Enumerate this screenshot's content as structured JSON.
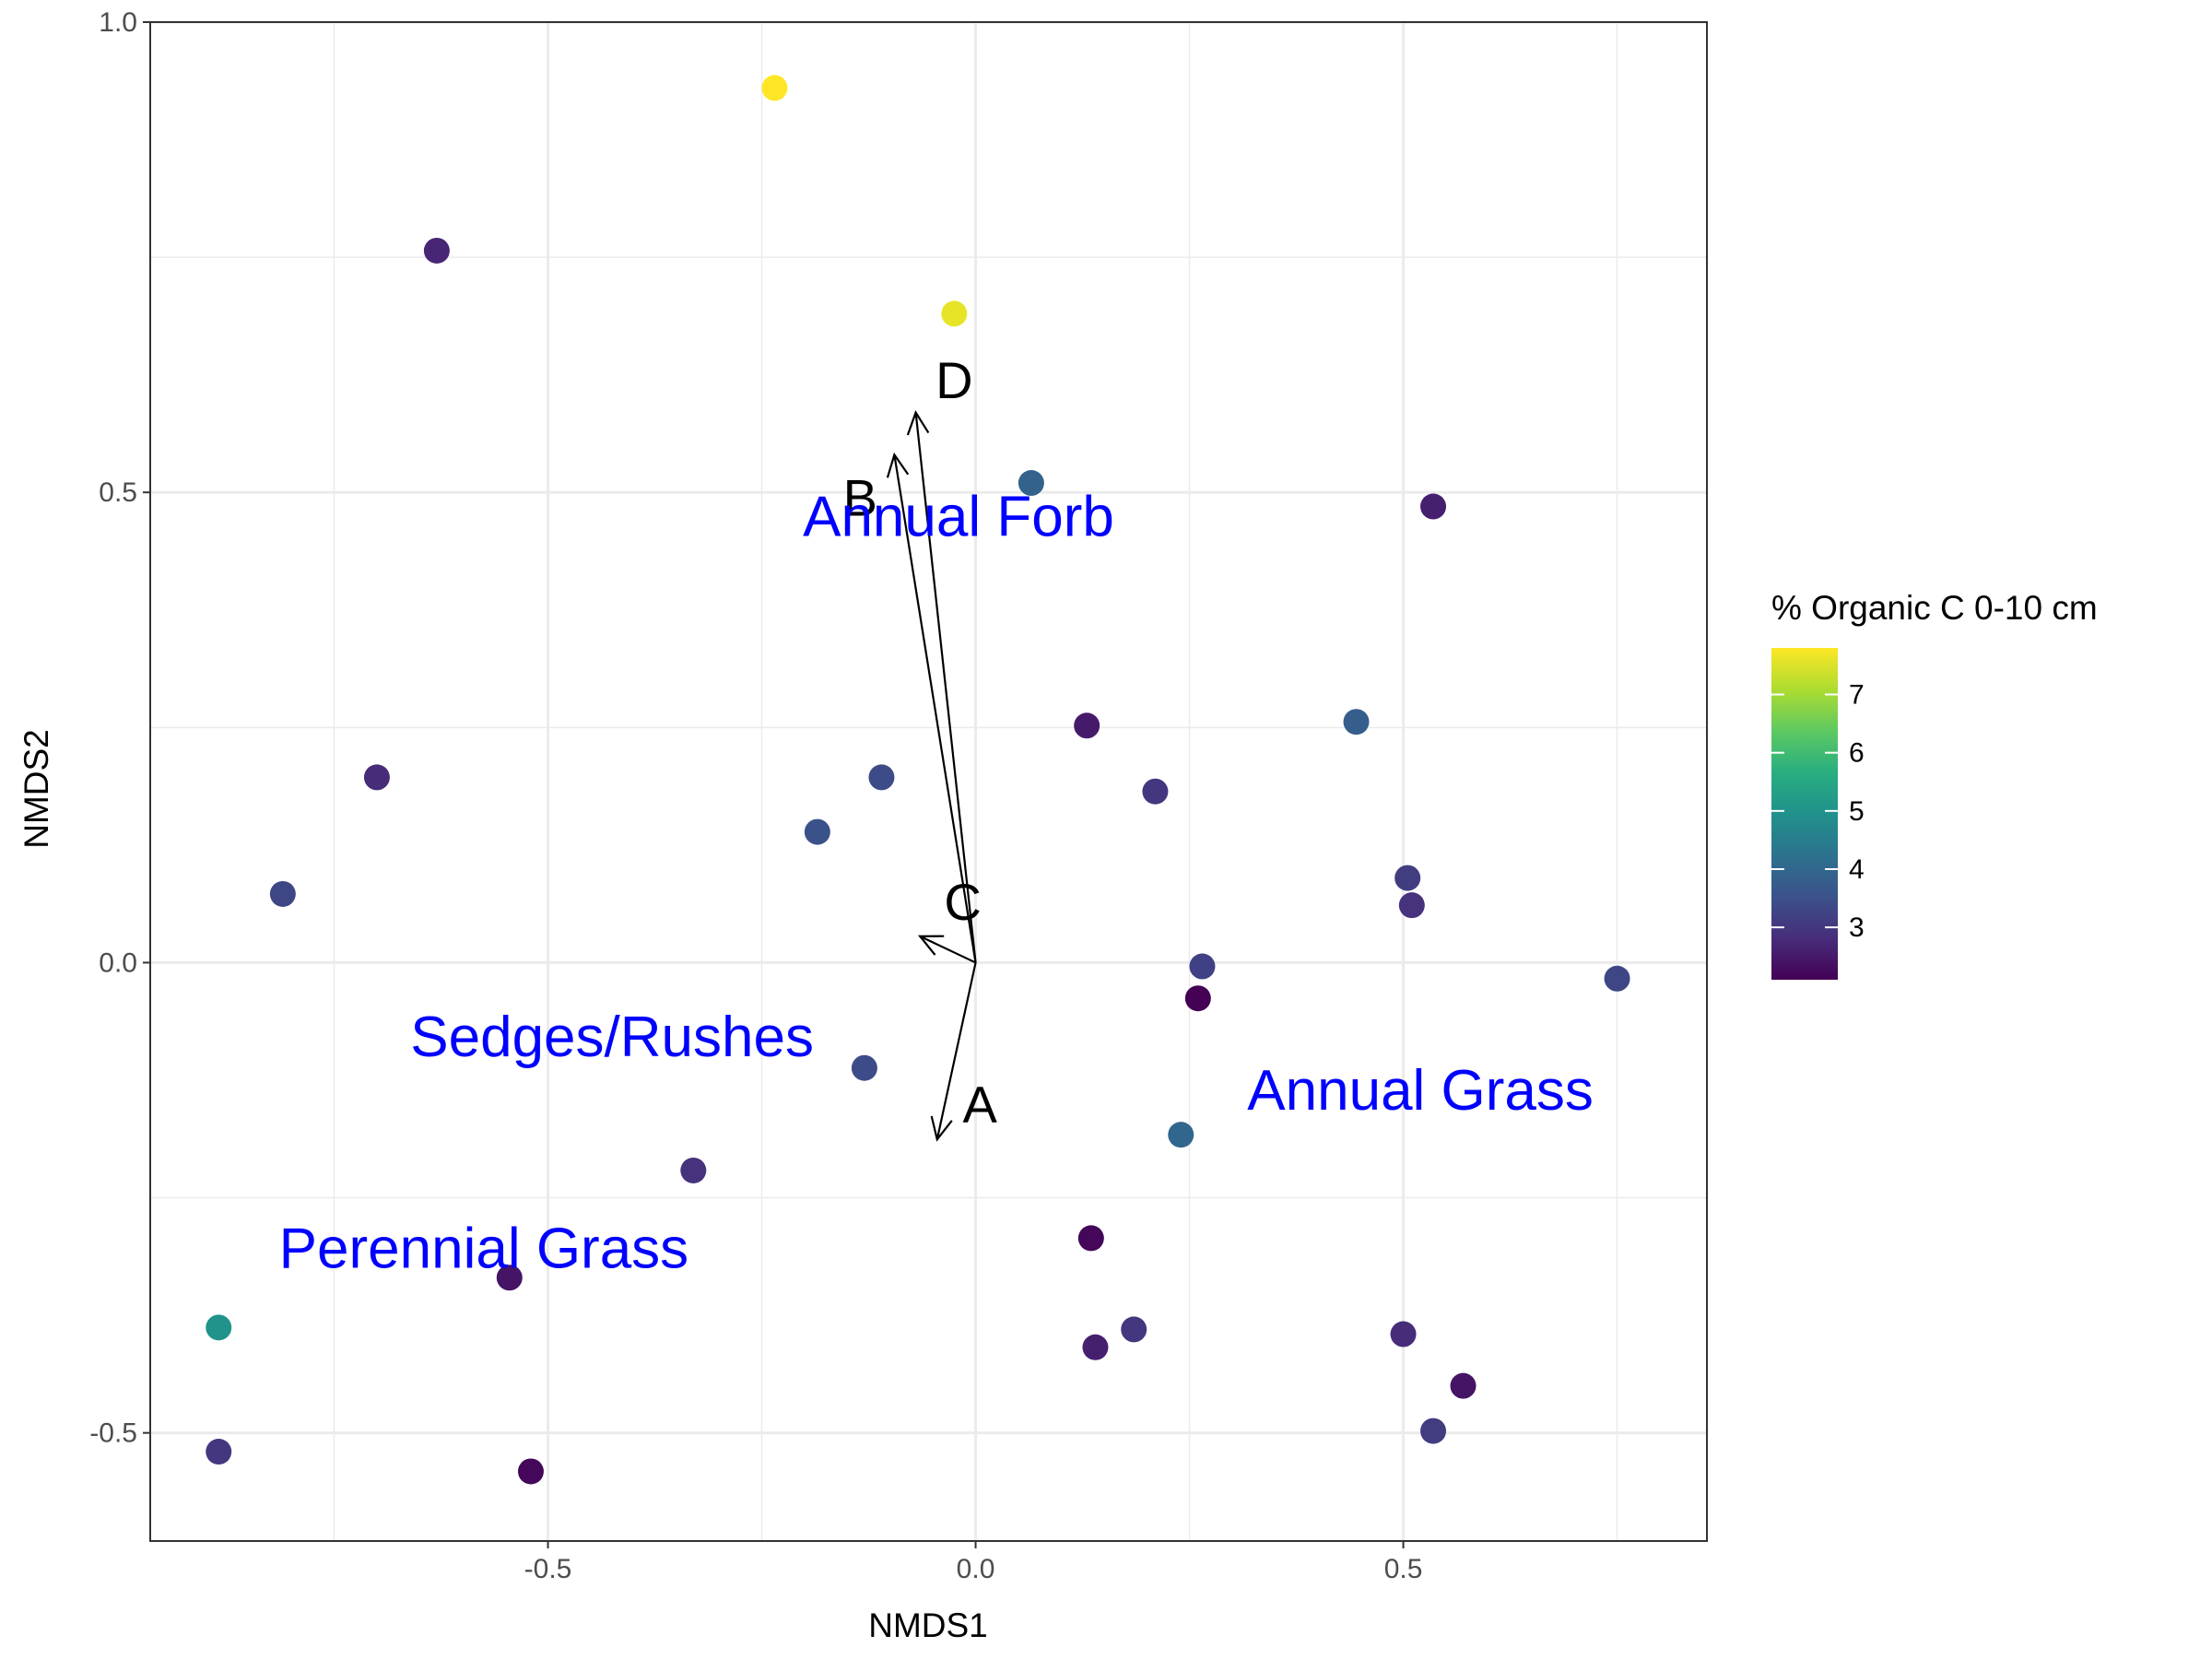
{
  "chart_data": {
    "type": "scatter",
    "xlabel": "NMDS1",
    "ylabel": "NMDS2",
    "xlim": [
      -0.965,
      0.855
    ],
    "ylim": [
      -0.615,
      1.0
    ],
    "x_ticks": [
      -0.5,
      0.0,
      0.5
    ],
    "x_tick_labels": [
      "-0.5",
      "0.0",
      "0.5"
    ],
    "y_ticks": [
      -0.5,
      0.0,
      0.5,
      1.0
    ],
    "y_tick_labels": [
      "-0.5",
      "0.0",
      "0.5",
      "1.0"
    ],
    "grid": true,
    "color_scale": {
      "title": "% Organic C 0-10 cm",
      "palette": "viridis",
      "range": [
        2.1,
        7.8
      ],
      "ticks": [
        3,
        4,
        5,
        6,
        7
      ],
      "tick_labels": [
        "3",
        "4",
        "5",
        "6",
        "7"
      ]
    },
    "points": [
      {
        "x": -0.235,
        "y": 0.93,
        "c": 7.8
      },
      {
        "x": -0.025,
        "y": 0.69,
        "c": 7.6
      },
      {
        "x": -0.63,
        "y": 0.757,
        "c": 2.7
      },
      {
        "x": 0.065,
        "y": 0.51,
        "c": 3.9
      },
      {
        "x": 0.535,
        "y": 0.485,
        "c": 2.6
      },
      {
        "x": 0.13,
        "y": 0.252,
        "c": 2.5
      },
      {
        "x": 0.445,
        "y": 0.256,
        "c": 3.8
      },
      {
        "x": -0.7,
        "y": 0.197,
        "c": 2.8
      },
      {
        "x": -0.11,
        "y": 0.197,
        "c": 3.4
      },
      {
        "x": 0.21,
        "y": 0.182,
        "c": 3.0
      },
      {
        "x": -0.185,
        "y": 0.139,
        "c": 3.5
      },
      {
        "x": -0.81,
        "y": 0.073,
        "c": 3.3
      },
      {
        "x": 0.505,
        "y": 0.09,
        "c": 3.1
      },
      {
        "x": 0.51,
        "y": 0.061,
        "c": 2.9
      },
      {
        "x": 0.265,
        "y": -0.004,
        "c": 3.2
      },
      {
        "x": 0.75,
        "y": -0.017,
        "c": 3.3
      },
      {
        "x": 0.26,
        "y": -0.038,
        "c": 2.1
      },
      {
        "x": -0.13,
        "y": -0.112,
        "c": 3.4
      },
      {
        "x": 0.24,
        "y": -0.183,
        "c": 4.0
      },
      {
        "x": -0.33,
        "y": -0.221,
        "c": 2.9
      },
      {
        "x": 0.135,
        "y": -0.293,
        "c": 2.2
      },
      {
        "x": -0.545,
        "y": -0.335,
        "c": 2.4
      },
      {
        "x": -0.885,
        "y": -0.388,
        "c": 5.0
      },
      {
        "x": 0.185,
        "y": -0.39,
        "c": 3.0
      },
      {
        "x": 0.14,
        "y": -0.409,
        "c": 2.6
      },
      {
        "x": 0.5,
        "y": -0.395,
        "c": 2.8
      },
      {
        "x": 0.57,
        "y": -0.45,
        "c": 2.4
      },
      {
        "x": 0.535,
        "y": -0.498,
        "c": 3.1
      },
      {
        "x": -0.885,
        "y": -0.52,
        "c": 3.0
      },
      {
        "x": -0.52,
        "y": -0.541,
        "c": 2.2
      }
    ],
    "vectors": [
      {
        "label": "A",
        "x": -0.045,
        "y": -0.188,
        "label_x": 0.005,
        "label_y": -0.15
      },
      {
        "label": "B",
        "x": -0.095,
        "y": 0.54,
        "label_x": -0.135,
        "label_y": 0.495
      },
      {
        "label": "C",
        "x": -0.065,
        "y": 0.028,
        "label_x": -0.015,
        "label_y": 0.065
      },
      {
        "label": "D",
        "x": -0.07,
        "y": 0.585,
        "label_x": -0.025,
        "label_y": 0.62
      }
    ],
    "group_labels": [
      {
        "text": "Annual Forb",
        "x": -0.02,
        "y": 0.475
      },
      {
        "text": "Sedges/Rushes",
        "x": -0.425,
        "y": -0.078
      },
      {
        "text": "Annual Grass",
        "x": 0.52,
        "y": -0.135
      },
      {
        "text": "Perennial Grass",
        "x": -0.575,
        "y": -0.303
      }
    ]
  }
}
